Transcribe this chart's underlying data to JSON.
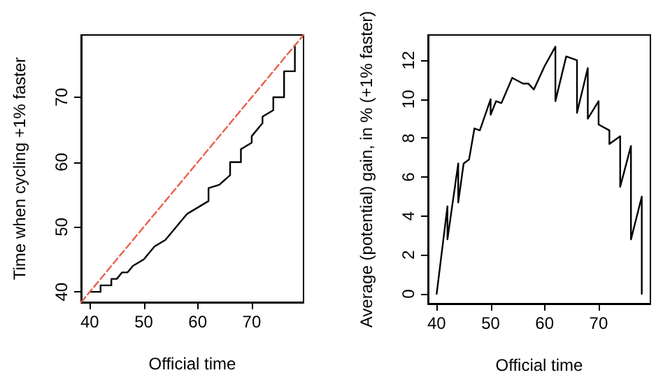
{
  "chart_data": [
    {
      "type": "line",
      "xlabel": "Official time",
      "ylabel": "Time when cycling +1% faster",
      "xlim": [
        38.4,
        79.6
      ],
      "ylim": [
        38.4,
        79.6
      ],
      "xticks": [
        40,
        50,
        60,
        70
      ],
      "yticks": [
        40,
        50,
        60,
        70
      ],
      "grid": false,
      "marker": "none",
      "series": [
        {
          "color": "#000000",
          "line_style": "solid",
          "x": [
            40,
            42,
            42,
            44,
            44,
            45,
            46,
            47,
            48,
            50,
            52,
            54,
            56,
            58,
            60,
            62,
            62,
            64,
            66,
            66,
            68,
            68,
            70,
            70,
            72,
            72,
            74,
            74,
            76,
            76,
            78,
            78
          ],
          "values": [
            40,
            40,
            41,
            41,
            42,
            42,
            43,
            43,
            44,
            45,
            47,
            48,
            50,
            52,
            53,
            54,
            56,
            56.5,
            58,
            60,
            60,
            62,
            63,
            64,
            66,
            67,
            68,
            70,
            70,
            74,
            74,
            78
          ]
        },
        {
          "color": "#e8604c",
          "line_style": "dashed",
          "x": [
            38.4,
            79.6
          ],
          "values": [
            38.4,
            79.6
          ]
        }
      ]
    },
    {
      "type": "line",
      "xlabel": "Official time",
      "ylabel": "Average (potential) gain, in % (+1% faster)",
      "xlim": [
        38.4,
        79.6
      ],
      "ylim": [
        -0.5,
        13.3
      ],
      "xticks": [
        40,
        50,
        60,
        70
      ],
      "yticks": [
        0,
        2,
        4,
        6,
        8,
        10,
        12
      ],
      "grid": false,
      "marker": "none",
      "series": [
        {
          "color": "#000000",
          "line_style": "solid",
          "x": [
            40,
            42,
            42,
            44,
            44,
            45,
            46,
            47,
            48,
            50,
            50,
            51,
            52,
            54,
            56,
            57,
            58,
            60,
            62,
            62,
            64,
            66,
            66,
            68,
            68,
            70,
            70,
            72,
            72,
            74,
            74,
            76,
            76,
            78,
            78
          ],
          "values": [
            0,
            4.5,
            2.8,
            6.7,
            4.7,
            6.7,
            6.9,
            8.5,
            8.4,
            10.0,
            9.2,
            9.9,
            9.8,
            11.1,
            10.8,
            10.8,
            10.5,
            11.7,
            12.7,
            9.9,
            12.2,
            12.0,
            9.3,
            11.6,
            9.0,
            9.9,
            8.7,
            8.4,
            7.7,
            8.1,
            5.5,
            7.6,
            2.8,
            5.0,
            0
          ]
        }
      ]
    }
  ]
}
